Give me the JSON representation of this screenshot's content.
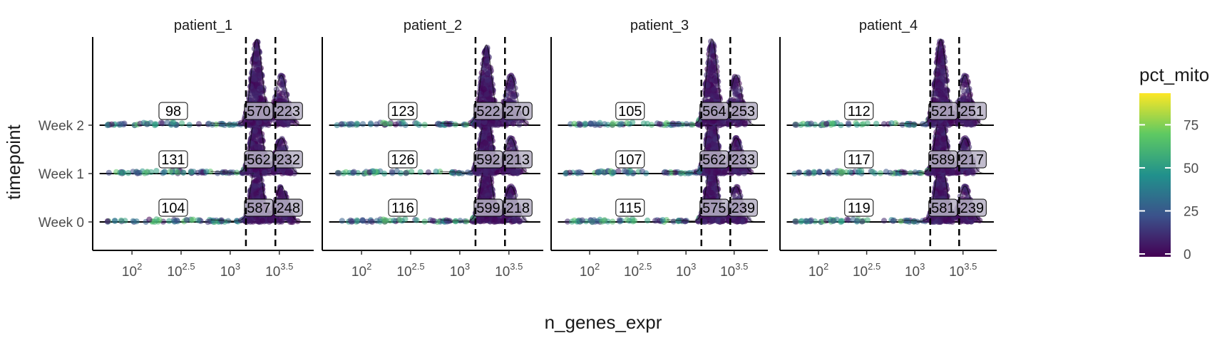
{
  "chart_data": {
    "type": "scatter",
    "subtype": "density-ridgeline with jittered points, faceted",
    "xlabel": "n_genes_expr",
    "ylabel": "timepoint",
    "x_scale": "log10",
    "xlim": [
      1.6,
      3.85
    ],
    "x_ticks": [
      {
        "value": 2,
        "base": "10",
        "exp": "2"
      },
      {
        "value": 2.5,
        "base": "10",
        "exp": "2.5"
      },
      {
        "value": 3,
        "base": "10",
        "exp": "3"
      },
      {
        "value": 3.5,
        "base": "10",
        "exp": "3.5"
      }
    ],
    "categories": [
      "Week 0",
      "Week 1",
      "Week 2"
    ],
    "thresholds_log10": [
      3.16,
      3.46
    ],
    "color_legend": {
      "title": "pct_mito",
      "min": 0,
      "max": 95,
      "ticks": [
        0,
        25,
        50,
        75
      ],
      "palette": [
        "#440154",
        "#3b528b",
        "#21918c",
        "#5ec962",
        "#fde725"
      ]
    },
    "facets": [
      {
        "title": "patient_1",
        "counts": [
          {
            "timepoint": "Week 0",
            "low": "104",
            "mid": "587",
            "high": "248"
          },
          {
            "timepoint": "Week 1",
            "low": "131",
            "mid": "562",
            "high": "232"
          },
          {
            "timepoint": "Week 2",
            "low": "98",
            "mid": "570",
            "high": "223"
          }
        ]
      },
      {
        "title": "patient_2",
        "counts": [
          {
            "timepoint": "Week 0",
            "low": "116",
            "mid": "599",
            "high": "218"
          },
          {
            "timepoint": "Week 1",
            "low": "126",
            "mid": "592",
            "high": "213"
          },
          {
            "timepoint": "Week 2",
            "low": "123",
            "mid": "522",
            "high": "270"
          }
        ]
      },
      {
        "title": "patient_3",
        "counts": [
          {
            "timepoint": "Week 0",
            "low": "115",
            "mid": "575",
            "high": "239"
          },
          {
            "timepoint": "Week 1",
            "low": "107",
            "mid": "562",
            "high": "233"
          },
          {
            "timepoint": "Week 2",
            "low": "105",
            "mid": "564",
            "high": "253"
          }
        ]
      },
      {
        "title": "patient_4",
        "counts": [
          {
            "timepoint": "Week 0",
            "low": "119",
            "mid": "581",
            "high": "239"
          },
          {
            "timepoint": "Week 1",
            "low": "117",
            "mid": "589",
            "high": "217"
          },
          {
            "timepoint": "Week 2",
            "low": "112",
            "mid": "521",
            "high": "251"
          }
        ]
      }
    ]
  }
}
